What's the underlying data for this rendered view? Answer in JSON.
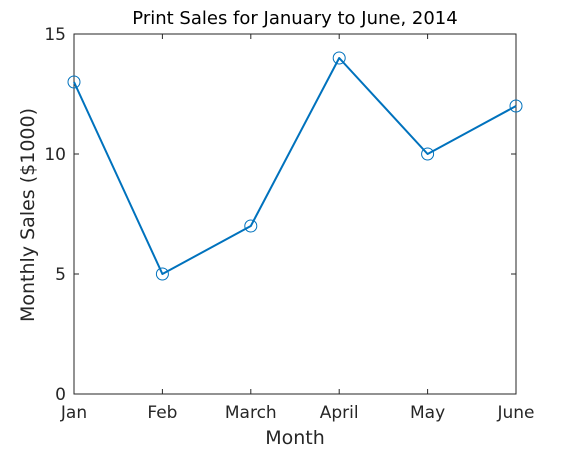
{
  "chart_data": {
    "type": "line",
    "title": "Print Sales for January to June, 2014",
    "xlabel": "Month",
    "ylabel": "Monthly Sales ($1000)",
    "categories": [
      "Jan",
      "Feb",
      "March",
      "April",
      "May",
      "June"
    ],
    "series": [
      {
        "values": [
          13,
          5,
          7,
          14,
          10,
          12
        ],
        "color": "#0072bd",
        "marker": "circle"
      }
    ],
    "ylim": [
      0,
      15
    ],
    "yticks": [
      0,
      5,
      10,
      15
    ],
    "grid": false,
    "legend": "none"
  }
}
